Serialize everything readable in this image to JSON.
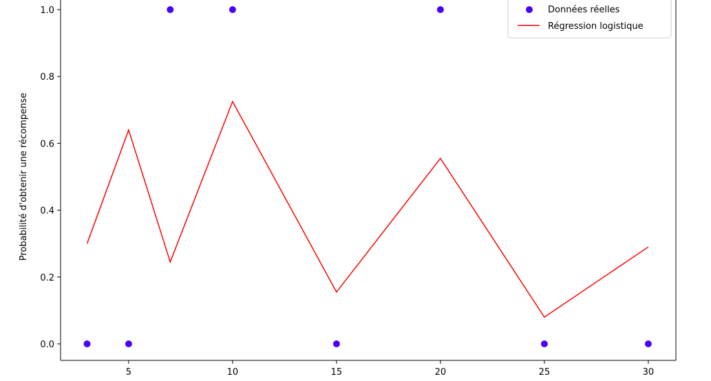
{
  "chart_data": {
    "type": "scatter",
    "title": "",
    "xlabel": "",
    "ylabel": "Probabilité d'obtenir une récompense",
    "xlim": [
      1.65,
      31.35
    ],
    "ylim": [
      -0.05,
      1.03
    ],
    "x_ticks": [
      5,
      10,
      15,
      20,
      25,
      30
    ],
    "x_tick_labels": [
      "5",
      "10",
      "15",
      "20",
      "25",
      "30"
    ],
    "y_ticks": [
      0.0,
      0.2,
      0.4,
      0.6,
      0.8,
      1.0
    ],
    "y_tick_labels": [
      "0.0",
      "0.2",
      "0.4",
      "0.6",
      "0.8",
      "1.0"
    ],
    "grid": false,
    "legend_position": "top-right",
    "series": [
      {
        "name": "Données réelles",
        "kind": "scatter",
        "color": "#4b00ff",
        "x": [
          3,
          5,
          7,
          10,
          15,
          20,
          25,
          30
        ],
        "y": [
          0,
          0,
          1,
          1,
          0,
          1,
          0,
          0
        ]
      },
      {
        "name": "Régression logistique",
        "kind": "line",
        "color": "#ff0000",
        "x": [
          3,
          5,
          7,
          10,
          15,
          20,
          25,
          30
        ],
        "y": [
          0.3,
          0.64,
          0.245,
          0.725,
          0.155,
          0.555,
          0.08,
          0.29
        ]
      }
    ]
  }
}
